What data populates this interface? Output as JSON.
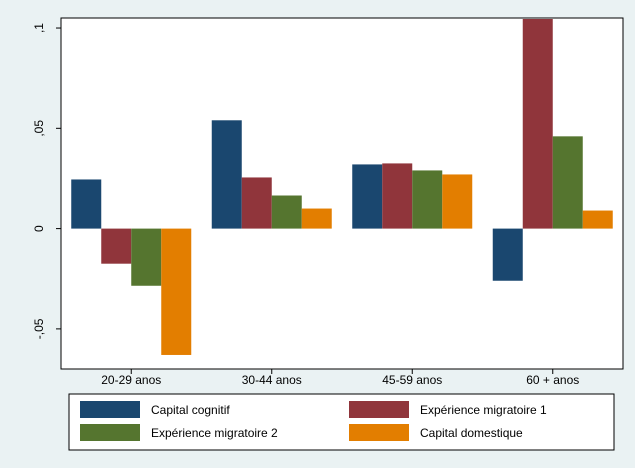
{
  "chart_data": {
    "type": "bar",
    "title": "",
    "xlabel": "",
    "ylabel": "",
    "categories": [
      "20-29 anos",
      "30-44 anos",
      "45-59 anos",
      "60 + anos"
    ],
    "ylim": [
      -0.07,
      0.105
    ],
    "yticks": [
      {
        "value": -0.05,
        "label": "-,05"
      },
      {
        "value": 0,
        "label": "0"
      },
      {
        "value": 0.05,
        "label": ",05"
      },
      {
        "value": 0.1,
        "label": ",1"
      }
    ],
    "grid": false,
    "legend_position": "bottom",
    "series": [
      {
        "name": "Capital cognitif",
        "color": "#1a476f",
        "values": [
          0.0245,
          0.054,
          0.032,
          -0.026
        ]
      },
      {
        "name": "Expérience migratoire 1",
        "color": "#90353b",
        "values": [
          -0.0175,
          0.0255,
          0.0325,
          0.1045
        ]
      },
      {
        "name": "Expérience migratoire 2",
        "color": "#55752f",
        "values": [
          -0.0285,
          0.0165,
          0.029,
          0.046
        ]
      },
      {
        "name": "Capital domestique",
        "color": "#e37e00",
        "values": [
          -0.063,
          0.01,
          0.027,
          0.009
        ]
      }
    ]
  }
}
